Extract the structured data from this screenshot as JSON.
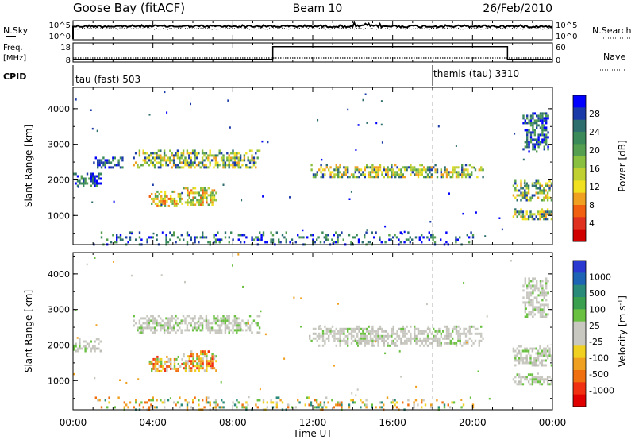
{
  "header": {
    "station": "Goose Bay (fitACF)",
    "beam": "Beam 10",
    "date": "26/Feb/2010"
  },
  "status_panels": {
    "nsky_label": "N.Sky",
    "nsky_ticks": [
      "10^5",
      "10^0"
    ],
    "nsearch_label": "N.Search",
    "nsearch_ticks": [
      "10^5",
      "10^0"
    ],
    "freq_label": "Freq.",
    "freq_unit": "[MHz]",
    "freq_ticks": [
      "18",
      "8"
    ],
    "nave_label": "Nave",
    "nave_ticks": [
      "60",
      "0"
    ],
    "cpid_label": "CPID",
    "cpid_segments": [
      {
        "label": "tau (fast) 503",
        "start_hour": 0
      },
      {
        "label": "themis (tau) 3310",
        "start_hour": 18
      }
    ],
    "nave_step": {
      "low": 8,
      "high": 48,
      "start_hour": 10,
      "end_hour": 21.75
    }
  },
  "chart_data": [
    {
      "type": "heatmap",
      "name": "power",
      "ylabel": "Slant Range [km]",
      "yticks": [
        1000,
        2000,
        3000,
        4000
      ],
      "ylim": [
        180,
        4600
      ],
      "xlim": [
        0,
        24
      ],
      "colorbar": {
        "label": "Power [dB]",
        "ticks": [
          "28",
          "24",
          "20",
          "16",
          "12",
          "8",
          "4"
        ],
        "colors": [
          "#0000ff",
          "#1a3aa8",
          "#2e6e6e",
          "#3a8a5a",
          "#55a050",
          "#8ac040",
          "#c0d030",
          "#f0e020",
          "#f0a020",
          "#f06010",
          "#e03020",
          "#d00000"
        ]
      },
      "regions": [
        {
          "x0": 0.0,
          "x1": 1.4,
          "y0": 1850,
          "y1": 2200,
          "level": "low"
        },
        {
          "x0": 1.0,
          "x1": 2.5,
          "y0": 2350,
          "y1": 2650,
          "level": "low"
        },
        {
          "x0": 3.0,
          "x1": 9.3,
          "y0": 2350,
          "y1": 2850,
          "level": "mid"
        },
        {
          "x0": 3.8,
          "x1": 5.5,
          "y0": 1250,
          "y1": 1700,
          "level": "high"
        },
        {
          "x0": 5.5,
          "x1": 7.2,
          "y0": 1300,
          "y1": 1800,
          "level": "high"
        },
        {
          "x0": 11.8,
          "x1": 20.5,
          "y0": 2050,
          "y1": 2450,
          "level": "mid"
        },
        {
          "x0": 22.0,
          "x1": 24.0,
          "y0": 900,
          "y1": 1200,
          "level": "mid"
        },
        {
          "x0": 22.0,
          "x1": 24.0,
          "y0": 1400,
          "y1": 2000,
          "level": "mid"
        },
        {
          "x0": 22.5,
          "x1": 23.8,
          "y0": 2800,
          "y1": 3900,
          "level": "low"
        },
        {
          "x0": 1.0,
          "x1": 20.0,
          "y0": 200,
          "y1": 550,
          "level": "low"
        }
      ]
    },
    {
      "type": "heatmap",
      "name": "velocity",
      "ylabel": "Slant Range [km]",
      "yticks": [
        1000,
        2000,
        3000,
        4000
      ],
      "ylim": [
        180,
        4600
      ],
      "xlim": [
        0,
        24
      ],
      "colorbar": {
        "label": "Velocity [m s^-1]",
        "ticks": [
          "1000",
          "500",
          "100",
          "25",
          "-25",
          "-100",
          "-500",
          "-1000"
        ],
        "colors": [
          "#2a3ad0",
          "#1e64b4",
          "#2a8a7a",
          "#3aa050",
          "#6ac040",
          "#c8c8c0",
          "#c8c8c0",
          "#f0d020",
          "#f0a020",
          "#f07010",
          "#f03010",
          "#e00000"
        ]
      },
      "regions": [
        {
          "x0": 0.0,
          "x1": 1.4,
          "y0": 1850,
          "y1": 2200,
          "level": "zero"
        },
        {
          "x0": 3.0,
          "x1": 9.3,
          "y0": 2350,
          "y1": 2850,
          "level": "zero"
        },
        {
          "x0": 3.8,
          "x1": 5.5,
          "y0": 1250,
          "y1": 1700,
          "level": "neg"
        },
        {
          "x0": 5.5,
          "x1": 7.2,
          "y0": 1300,
          "y1": 1850,
          "level": "neg"
        },
        {
          "x0": 11.8,
          "x1": 20.5,
          "y0": 2000,
          "y1": 2550,
          "level": "zero"
        },
        {
          "x0": 22.0,
          "x1": 24.0,
          "y0": 900,
          "y1": 1200,
          "level": "zero"
        },
        {
          "x0": 22.0,
          "x1": 24.0,
          "y0": 1400,
          "y1": 2000,
          "level": "zero"
        },
        {
          "x0": 22.5,
          "x1": 23.8,
          "y0": 2800,
          "y1": 3900,
          "level": "zero"
        },
        {
          "x0": 1.0,
          "x1": 20.0,
          "y0": 200,
          "y1": 550,
          "level": "mix"
        }
      ]
    }
  ],
  "time_axis": {
    "label": "Time UT",
    "ticks": [
      "00:00",
      "04:00",
      "08:00",
      "12:00",
      "16:00",
      "20:00",
      "00:00"
    ],
    "tick_hours": [
      0,
      4,
      8,
      12,
      16,
      20,
      24
    ],
    "marker_hour": 18
  }
}
